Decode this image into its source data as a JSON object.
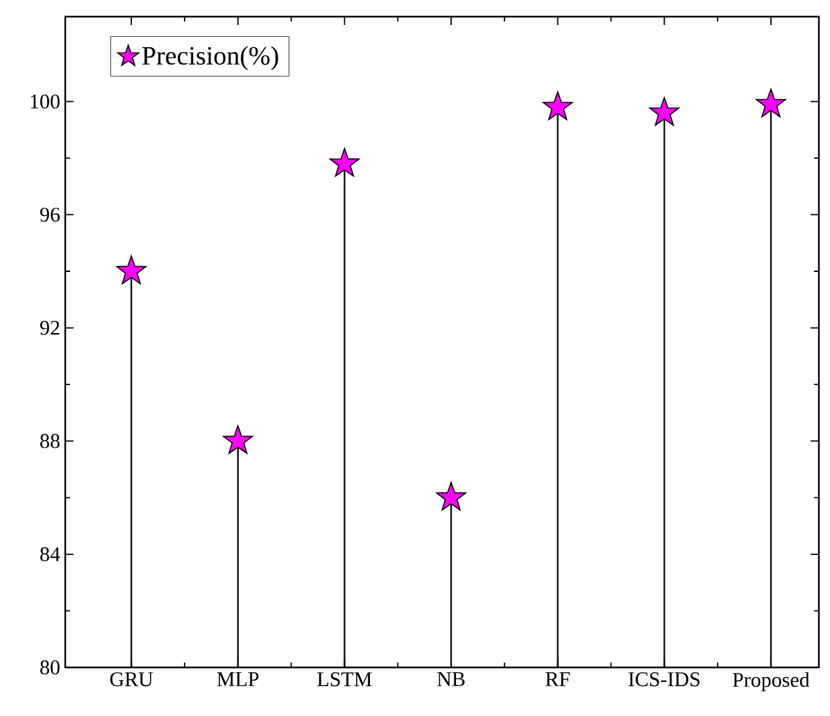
{
  "chart_data": {
    "type": "lollipop",
    "categories": [
      "GRU",
      "MLP",
      "LSTM",
      "NB",
      "RF",
      "ICS-IDS",
      "Proposed"
    ],
    "series": [
      {
        "name": "Precision(%)",
        "color": "#ff00ff",
        "values": [
          94,
          88,
          97.8,
          86,
          99.8,
          99.6,
          99.9
        ]
      }
    ],
    "ylim": [
      80,
      103
    ],
    "yticks": [
      80,
      84,
      88,
      92,
      96,
      100
    ],
    "marker": "star",
    "legend": "top left",
    "grid": false
  }
}
